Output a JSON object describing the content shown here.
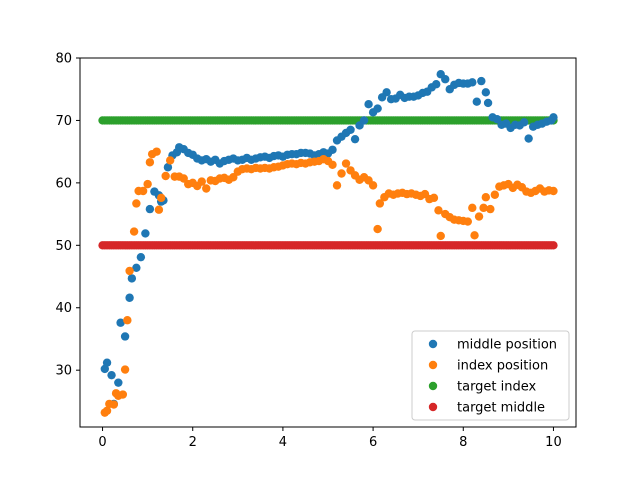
{
  "chart_data": {
    "type": "scatter",
    "title": "",
    "xlabel": "",
    "ylabel": "",
    "xlim": [
      -0.5,
      10.5
    ],
    "ylim": [
      20.9,
      80
    ],
    "xticks": [
      0,
      2,
      4,
      6,
      8,
      10
    ],
    "yticks": [
      30,
      40,
      50,
      60,
      70,
      80
    ],
    "grid": false,
    "legend": "lower-right",
    "series": [
      {
        "name": "middle position",
        "color": "#1f77b4",
        "points": [
          [
            0.05,
            30.2
          ],
          [
            0.1,
            31.2
          ],
          [
            0.2,
            29.2
          ],
          [
            0.25,
            24.6
          ],
          [
            0.35,
            28.0
          ],
          [
            0.4,
            37.6
          ],
          [
            0.5,
            35.4
          ],
          [
            0.6,
            41.6
          ],
          [
            0.65,
            44.7
          ],
          [
            0.75,
            46.4
          ],
          [
            0.85,
            48.1
          ],
          [
            0.95,
            51.9
          ],
          [
            1.05,
            55.8
          ],
          [
            1.15,
            58.6
          ],
          [
            1.25,
            58.0
          ],
          [
            1.3,
            57.0
          ],
          [
            1.35,
            57.2
          ],
          [
            1.45,
            62.5
          ],
          [
            1.55,
            64.4
          ],
          [
            1.65,
            64.9
          ],
          [
            1.7,
            65.7
          ],
          [
            1.8,
            65.4
          ],
          [
            1.9,
            64.8
          ],
          [
            2.0,
            64.5
          ],
          [
            2.1,
            63.9
          ],
          [
            2.2,
            63.6
          ],
          [
            2.3,
            63.8
          ],
          [
            2.4,
            63.4
          ],
          [
            2.5,
            63.7
          ],
          [
            2.6,
            63.1
          ],
          [
            2.7,
            63.5
          ],
          [
            2.8,
            63.7
          ],
          [
            2.9,
            63.9
          ],
          [
            3.0,
            63.6
          ],
          [
            3.1,
            63.7
          ],
          [
            3.2,
            64.0
          ],
          [
            3.3,
            63.7
          ],
          [
            3.4,
            63.9
          ],
          [
            3.5,
            64.1
          ],
          [
            3.6,
            64.2
          ],
          [
            3.7,
            64.0
          ],
          [
            3.8,
            64.3
          ],
          [
            3.9,
            64.4
          ],
          [
            4.0,
            64.2
          ],
          [
            4.1,
            64.5
          ],
          [
            4.2,
            64.6
          ],
          [
            4.3,
            64.6
          ],
          [
            4.4,
            64.8
          ],
          [
            4.5,
            64.8
          ],
          [
            4.6,
            64.7
          ],
          [
            4.7,
            64.4
          ],
          [
            4.8,
            64.6
          ],
          [
            4.9,
            64.9
          ],
          [
            5.0,
            64.7
          ],
          [
            5.1,
            65.3
          ],
          [
            5.2,
            66.8
          ],
          [
            5.3,
            67.4
          ],
          [
            5.4,
            68.0
          ],
          [
            5.5,
            68.5
          ],
          [
            5.6,
            67.0
          ],
          [
            5.7,
            69.2
          ],
          [
            5.8,
            70.0
          ],
          [
            5.9,
            72.6
          ],
          [
            6.0,
            71.3
          ],
          [
            6.1,
            71.9
          ],
          [
            6.2,
            73.7
          ],
          [
            6.3,
            74.5
          ],
          [
            6.4,
            73.4
          ],
          [
            6.5,
            73.5
          ],
          [
            6.6,
            74.1
          ],
          [
            6.7,
            73.6
          ],
          [
            6.8,
            73.8
          ],
          [
            6.9,
            73.8
          ],
          [
            7.0,
            74.0
          ],
          [
            7.1,
            74.4
          ],
          [
            7.2,
            74.6
          ],
          [
            7.3,
            75.3
          ],
          [
            7.4,
            75.8
          ],
          [
            7.5,
            77.4
          ],
          [
            7.6,
            76.6
          ],
          [
            7.7,
            75.0
          ],
          [
            7.8,
            75.7
          ],
          [
            7.9,
            76.0
          ],
          [
            8.0,
            75.9
          ],
          [
            8.1,
            75.9
          ],
          [
            8.2,
            76.1
          ],
          [
            8.3,
            73.0
          ],
          [
            8.4,
            76.3
          ],
          [
            8.5,
            74.5
          ],
          [
            8.55,
            72.8
          ],
          [
            8.65,
            70.5
          ],
          [
            8.75,
            70.2
          ],
          [
            8.85,
            69.3
          ],
          [
            8.95,
            69.5
          ],
          [
            9.05,
            68.8
          ],
          [
            9.15,
            69.3
          ],
          [
            9.25,
            69.2
          ],
          [
            9.35,
            69.7
          ],
          [
            9.45,
            67.1
          ],
          [
            9.55,
            69.0
          ],
          [
            9.65,
            69.3
          ],
          [
            9.75,
            69.5
          ],
          [
            9.85,
            69.8
          ],
          [
            9.95,
            70.0
          ],
          [
            10.0,
            70.5
          ]
        ]
      },
      {
        "name": "index position",
        "color": "#ff7f0e",
        "points": [
          [
            0.05,
            23.2
          ],
          [
            0.1,
            23.5
          ],
          [
            0.15,
            24.6
          ],
          [
            0.25,
            24.5
          ],
          [
            0.3,
            26.3
          ],
          [
            0.35,
            25.9
          ],
          [
            0.45,
            26.1
          ],
          [
            0.5,
            30.1
          ],
          [
            0.55,
            38.0
          ],
          [
            0.6,
            45.9
          ],
          [
            0.7,
            52.2
          ],
          [
            0.75,
            56.7
          ],
          [
            0.8,
            58.7
          ],
          [
            0.9,
            58.7
          ],
          [
            1.0,
            59.8
          ],
          [
            1.05,
            63.3
          ],
          [
            1.1,
            64.6
          ],
          [
            1.2,
            65.0
          ],
          [
            1.25,
            55.7
          ],
          [
            1.3,
            57.6
          ],
          [
            1.4,
            61.1
          ],
          [
            1.5,
            63.6
          ],
          [
            1.6,
            61.0
          ],
          [
            1.7,
            61.0
          ],
          [
            1.8,
            60.7
          ],
          [
            1.9,
            59.8
          ],
          [
            2.0,
            60.0
          ],
          [
            2.1,
            59.5
          ],
          [
            2.2,
            60.2
          ],
          [
            2.3,
            59.1
          ],
          [
            2.4,
            60.4
          ],
          [
            2.5,
            60.3
          ],
          [
            2.6,
            60.7
          ],
          [
            2.7,
            60.8
          ],
          [
            2.8,
            60.5
          ],
          [
            2.9,
            60.9
          ],
          [
            3.0,
            61.8
          ],
          [
            3.1,
            62.2
          ],
          [
            3.2,
            62.3
          ],
          [
            3.3,
            62.2
          ],
          [
            3.4,
            62.4
          ],
          [
            3.5,
            62.3
          ],
          [
            3.6,
            62.4
          ],
          [
            3.7,
            62.3
          ],
          [
            3.8,
            62.5
          ],
          [
            3.9,
            62.6
          ],
          [
            4.0,
            62.8
          ],
          [
            4.1,
            63.0
          ],
          [
            4.2,
            63.1
          ],
          [
            4.3,
            63.0
          ],
          [
            4.4,
            63.2
          ],
          [
            4.5,
            63.1
          ],
          [
            4.6,
            63.3
          ],
          [
            4.7,
            63.4
          ],
          [
            4.8,
            63.5
          ],
          [
            4.9,
            63.8
          ],
          [
            5.0,
            63.5
          ],
          [
            5.1,
            62.9
          ],
          [
            5.2,
            59.6
          ],
          [
            5.3,
            61.5
          ],
          [
            5.4,
            63.1
          ],
          [
            5.5,
            62.0
          ],
          [
            5.6,
            61.2
          ],
          [
            5.7,
            60.5
          ],
          [
            5.8,
            60.9
          ],
          [
            5.9,
            60.4
          ],
          [
            6.0,
            59.6
          ],
          [
            6.1,
            52.6
          ],
          [
            6.15,
            56.7
          ],
          [
            6.25,
            57.7
          ],
          [
            6.35,
            58.3
          ],
          [
            6.45,
            58.1
          ],
          [
            6.55,
            58.3
          ],
          [
            6.65,
            58.4
          ],
          [
            6.75,
            58.2
          ],
          [
            6.85,
            58.3
          ],
          [
            6.95,
            58.1
          ],
          [
            7.05,
            57.9
          ],
          [
            7.15,
            58.2
          ],
          [
            7.25,
            57.4
          ],
          [
            7.35,
            57.6
          ],
          [
            7.45,
            55.6
          ],
          [
            7.5,
            51.5
          ],
          [
            7.6,
            55.0
          ],
          [
            7.7,
            54.5
          ],
          [
            7.8,
            54.1
          ],
          [
            7.9,
            54.0
          ],
          [
            8.0,
            53.9
          ],
          [
            8.1,
            53.8
          ],
          [
            8.2,
            56.0
          ],
          [
            8.25,
            51.6
          ],
          [
            8.35,
            54.6
          ],
          [
            8.45,
            56.0
          ],
          [
            8.5,
            57.7
          ],
          [
            8.6,
            55.8
          ],
          [
            8.7,
            58.1
          ],
          [
            8.8,
            59.4
          ],
          [
            8.9,
            59.6
          ],
          [
            9.0,
            59.8
          ],
          [
            9.1,
            59.2
          ],
          [
            9.2,
            59.7
          ],
          [
            9.3,
            59.3
          ],
          [
            9.4,
            58.6
          ],
          [
            9.5,
            58.4
          ],
          [
            9.6,
            58.7
          ],
          [
            9.7,
            59.1
          ],
          [
            9.8,
            58.6
          ],
          [
            9.9,
            58.8
          ],
          [
            10.0,
            58.7
          ]
        ]
      },
      {
        "name": "target index",
        "color": "#2ca02c",
        "x_from": 0,
        "x_to": 10,
        "count": 201,
        "value": 70
      },
      {
        "name": "target middle",
        "color": "#d62728",
        "x_from": 0,
        "x_to": 10,
        "count": 201,
        "value": 50
      }
    ]
  }
}
